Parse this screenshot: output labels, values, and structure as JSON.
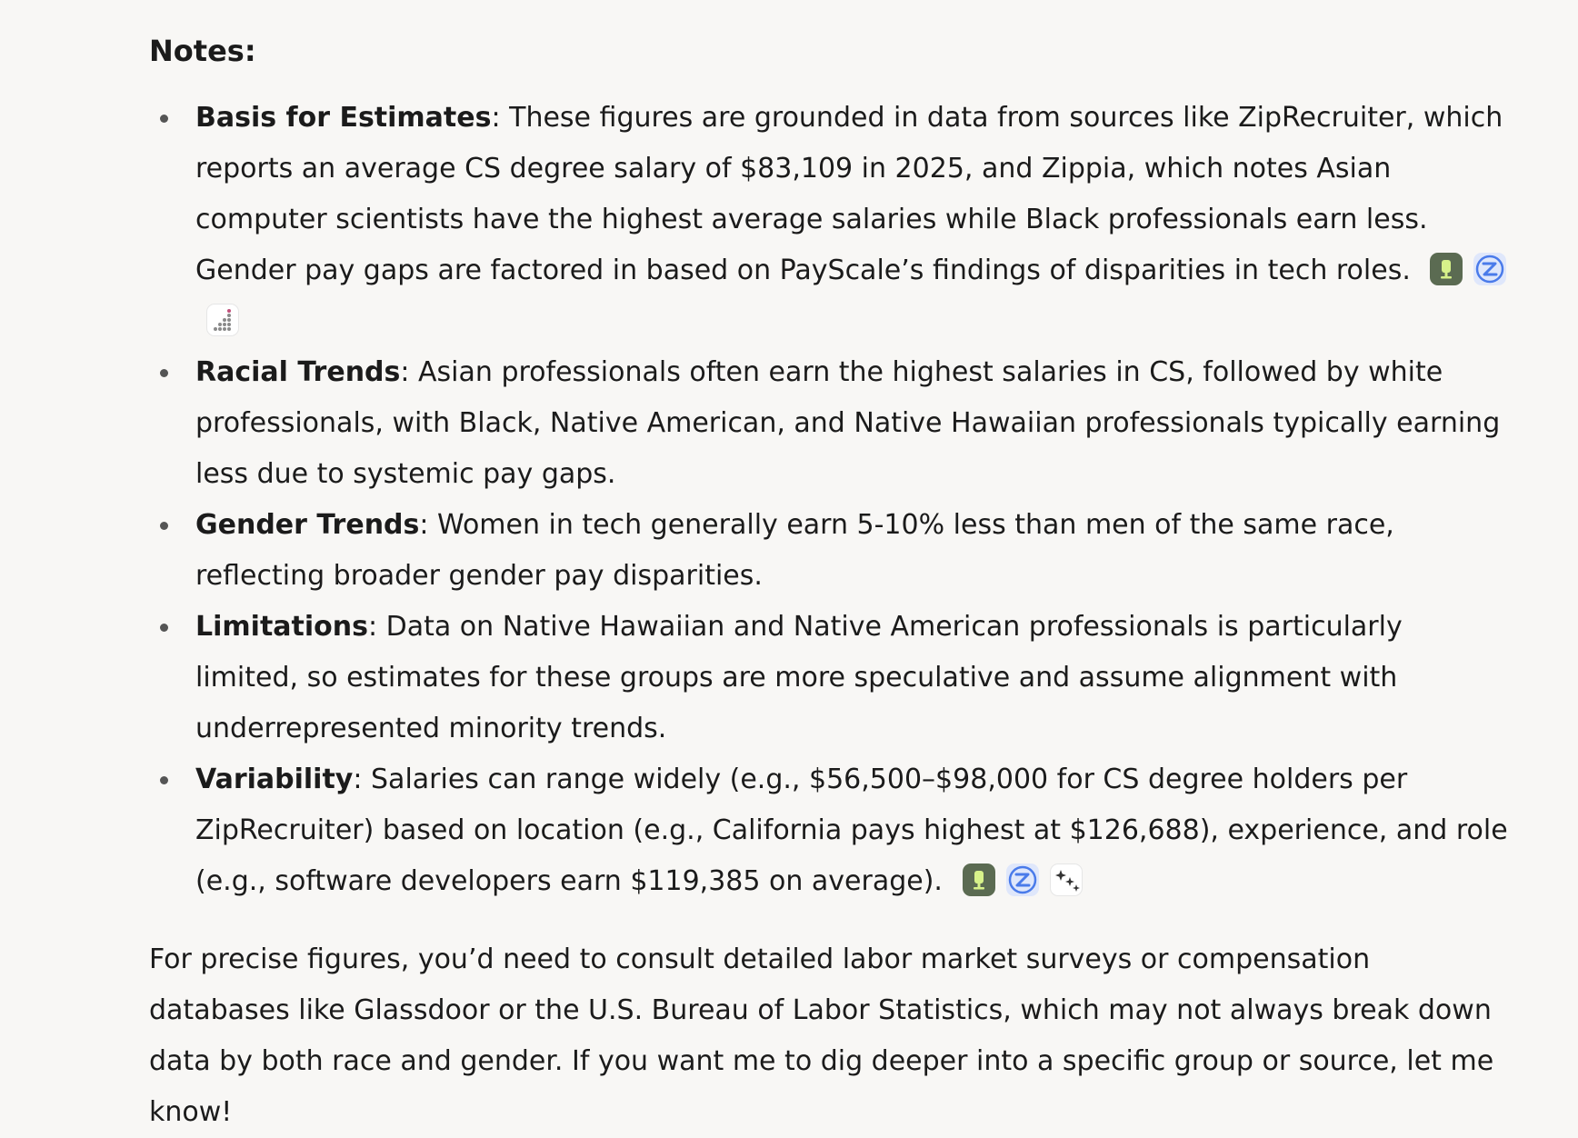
{
  "notes": {
    "heading": "Notes:",
    "items": [
      {
        "term": "Basis for Estimates",
        "text": ": These figures are grounded in data from sources like ZipRecruiter, which reports an average CS degree salary of $83,109 in 2025, and Zippia, which notes Asian computer scientists have the highest average salaries while Black professionals earn less. Gender pay gaps are factored in based on PayScale’s findings of disparities in tech roles.",
        "source_icons": [
          "glassdoor-icon",
          "ziprecruiter-icon",
          "payscale-icon"
        ]
      },
      {
        "term": "Racial Trends",
        "text": ": Asian professionals often earn the highest salaries in CS, followed by white professionals, with Black, Native American, and Native Hawaiian professionals typically earning less due to systemic pay gaps."
      },
      {
        "term": "Gender Trends",
        "text": ": Women in tech generally earn 5-10% less than men of the same race, reflecting broader gender pay disparities."
      },
      {
        "term": "Limitations",
        "text": ": Data on Native Hawaiian and Native American professionals is particularly limited, so estimates for these groups are more speculative and assume alignment with underrepresented minority trends."
      },
      {
        "term": "Variability",
        "text": ": Salaries can range widely (e.g., $56,500–$98,000 for CS degree holders per ZipRecruiter) based on location (e.g., California pays highest at $126,688), experience, and role (e.g., software developers earn $119,385 on average).",
        "source_icons": [
          "glassdoor-icon",
          "ziprecruiter-icon",
          "sparkle-stars-icon"
        ]
      }
    ]
  },
  "footer": {
    "text": "For precise figures, you’d need to consult detailed labor market surveys or compensation databases like Glassdoor or the U.S. Bureau of Labor Statistics, which may not always break down data by both race and gender. If you want me to dig deeper into a specific group or source, let me know!"
  },
  "colors": {
    "background": "#f8f7f5",
    "text": "#1b1b1b",
    "glassdoor": "#5b6b52",
    "ziprecruiter": "#3b6fe0"
  }
}
